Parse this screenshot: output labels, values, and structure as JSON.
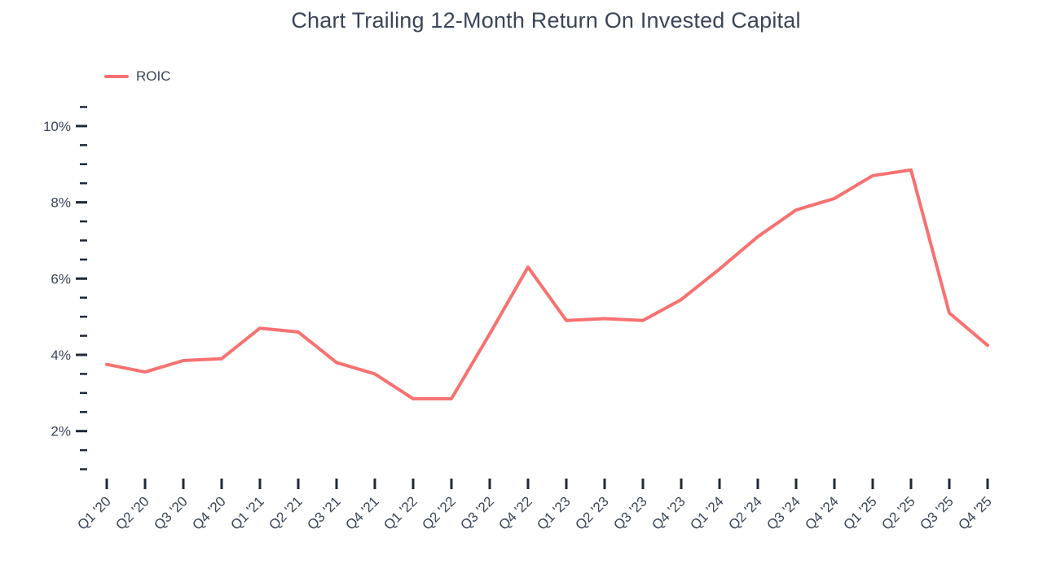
{
  "title": "Chart Trailing 12-Month Return On Invested Capital",
  "legend": {
    "items": [
      {
        "label": "ROIC",
        "color": "#F87171"
      }
    ]
  },
  "colors": {
    "accent": "#F87171",
    "text": "#3A4557",
    "tick": "#1F2937",
    "background": "#ffffff"
  },
  "chart_data": {
    "type": "line",
    "title": "Chart Trailing 12-Month Return On Invested Capital",
    "categories": [
      "Q1 '20",
      "Q2 '20",
      "Q3 '20",
      "Q4 '20",
      "Q1 '21",
      "Q2 '21",
      "Q3 '21",
      "Q4 '21",
      "Q1 '22",
      "Q2 '22",
      "Q3 '22",
      "Q4 '22",
      "Q1 '23",
      "Q2 '23",
      "Q3 '23",
      "Q4 '23",
      "Q1 '24",
      "Q2 '24",
      "Q3 '24",
      "Q4 '24",
      "Q1 '25",
      "Q2 '25",
      "Q3 '25",
      "Q4 '25"
    ],
    "series": [
      {
        "name": "ROIC",
        "color": "#F87171",
        "values": [
          3.75,
          3.55,
          3.85,
          3.9,
          4.7,
          4.6,
          3.8,
          3.5,
          2.85,
          2.85,
          4.55,
          6.3,
          4.9,
          4.95,
          4.9,
          5.45,
          6.25,
          7.1,
          7.8,
          8.1,
          8.7,
          8.85,
          5.1,
          4.25
        ]
      }
    ],
    "xlabel": "",
    "ylabel": "",
    "y_axis": {
      "unit": "%",
      "major_ticks": [
        2,
        4,
        6,
        8,
        10
      ],
      "tick_labels": [
        "2%",
        "4%",
        "6%",
        "8%",
        "10%"
      ],
      "minor_tick_step": 0.5,
      "range": [
        1.0,
        10.5
      ]
    },
    "x_tick_rotation": -45,
    "grid": false,
    "legend_position": "top-left"
  }
}
